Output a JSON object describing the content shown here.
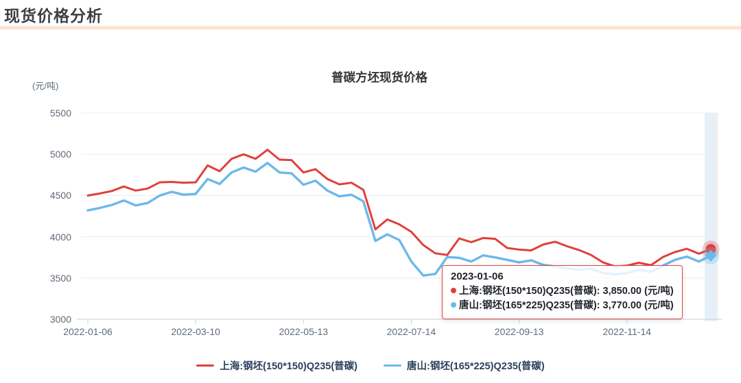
{
  "header": {
    "title": "现货价格分析"
  },
  "chart": {
    "title": "普碳方坯现货价格",
    "unit": "(元/吨)"
  },
  "colors": {
    "shanghai_red": "#df403c",
    "tangshan_blue": "#6cb8ea",
    "accent_peach": "#fbe3d2",
    "grid": "#ececec",
    "axis": "#c6cfdd",
    "band": "#6c9fd0"
  },
  "chart_data": {
    "type": "line",
    "title": "普碳方坯现货价格",
    "ylabel": "(元/吨)",
    "ylim": [
      3000,
      5500
    ],
    "y_ticks": [
      5500,
      5000,
      4500,
      4000,
      3500,
      3000
    ],
    "x_range": [
      "2022-01-06",
      "2023-01-06"
    ],
    "n_points": 53,
    "x_tick_labels": [
      {
        "i": 0,
        "label": "2022-01-06"
      },
      {
        "i": 9,
        "label": "2022-03-10"
      },
      {
        "i": 18,
        "label": "2022-05-13"
      },
      {
        "i": 27,
        "label": "2022-07-14"
      },
      {
        "i": 36,
        "label": "2022-09-13"
      },
      {
        "i": 45,
        "label": "2022-11-14"
      }
    ],
    "grid": "horizontal-only",
    "legend_position": "bottom",
    "series": [
      {
        "name": "上海:钢坯(150*150)Q235(普碳)",
        "color": "#df403c",
        "endpoint_marker": "circle",
        "values": [
          4500,
          4525,
          4555,
          4610,
          4560,
          4585,
          4660,
          4665,
          4655,
          4660,
          4865,
          4795,
          4945,
          5000,
          4945,
          5055,
          4935,
          4930,
          4780,
          4820,
          4700,
          4635,
          4655,
          4570,
          4090,
          4210,
          4150,
          4060,
          3900,
          3800,
          3780,
          3980,
          3935,
          3985,
          3975,
          3865,
          3845,
          3835,
          3905,
          3940,
          3885,
          3840,
          3780,
          3690,
          3640,
          3650,
          3685,
          3655,
          3755,
          3815,
          3855,
          3795,
          3850
        ]
      },
      {
        "name": "唐山:钢坯(165*225)Q235(普碳)",
        "color": "#6cb8ea",
        "endpoint_marker": "diamond",
        "values": [
          4320,
          4350,
          4385,
          4440,
          4380,
          4410,
          4500,
          4545,
          4510,
          4520,
          4700,
          4640,
          4780,
          4840,
          4790,
          4895,
          4780,
          4770,
          4630,
          4680,
          4560,
          4490,
          4510,
          4430,
          3950,
          4030,
          3960,
          3700,
          3530,
          3550,
          3755,
          3745,
          3700,
          3775,
          3750,
          3720,
          3690,
          3715,
          3660,
          3640,
          3620,
          3600,
          3615,
          3560,
          3545,
          3560,
          3600,
          3575,
          3650,
          3720,
          3760,
          3700,
          3770
        ]
      }
    ]
  },
  "tooltip": {
    "date": "2023-01-06",
    "rows": [
      {
        "label": "上海:钢坯(150*150)Q235(普碳)",
        "value": "3,850.00 (元/吨)",
        "color": "#df403c"
      },
      {
        "label": "唐山:钢坯(165*225)Q235(普碳)",
        "value": "3,770.00 (元/吨)",
        "color": "#6cb8ea"
      }
    ]
  },
  "legend": {
    "items": [
      {
        "label": "上海:钢坯(150*150)Q235(普碳)",
        "color": "#df403c"
      },
      {
        "label": "唐山:钢坯(165*225)Q235(普碳)",
        "color": "#6cb8ea"
      }
    ]
  }
}
